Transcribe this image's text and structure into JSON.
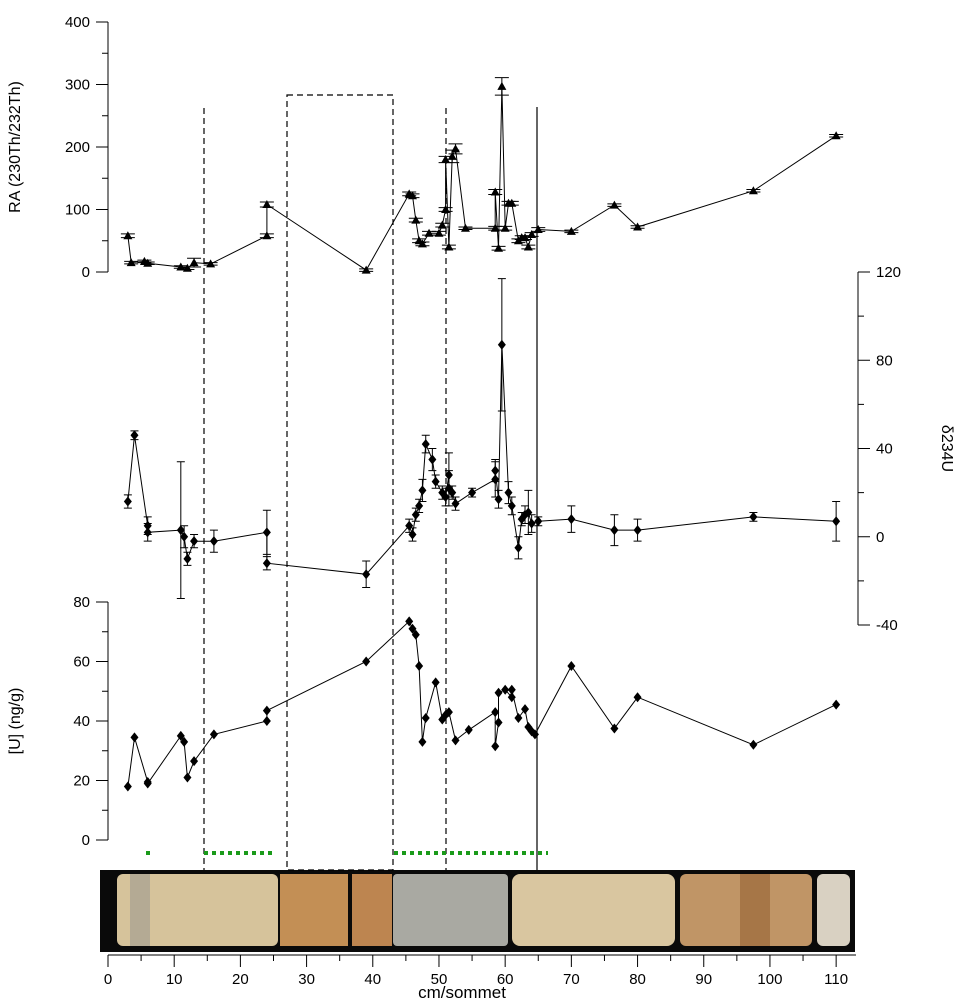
{
  "chart_data": [
    {
      "type": "line",
      "y_label": "RA (230Th/232Th)",
      "marker": "triangle",
      "color": "#000000",
      "x": [
        3,
        3.5,
        5.5,
        6,
        11,
        12,
        13,
        15.5,
        24,
        24,
        39,
        45.5,
        46,
        46.5,
        47,
        47.5,
        48.5,
        50,
        50.5,
        51,
        51,
        51.5,
        52,
        52.5,
        54,
        58.5,
        58.5,
        59,
        59.5,
        60,
        60.5,
        61,
        62,
        62.5,
        63,
        63.5,
        64,
        65,
        70,
        76.5,
        80,
        97.5,
        110
      ],
      "values": [
        58,
        15,
        17,
        14,
        8,
        6,
        15,
        13,
        58,
        108,
        3,
        125,
        122,
        83,
        50,
        45,
        62,
        62,
        75,
        100,
        180,
        40,
        185,
        197,
        70,
        70,
        128,
        38,
        297,
        70,
        110,
        110,
        50,
        55,
        55,
        40,
        60,
        68,
        65,
        107,
        72,
        130,
        218
      ],
      "errors": [
        3,
        2,
        2,
        2,
        2,
        2,
        7,
        2,
        3,
        4,
        2,
        3,
        3,
        3,
        3,
        3,
        3,
        3,
        3,
        3,
        5,
        3,
        10,
        8,
        2,
        3,
        4,
        3,
        14,
        3,
        3,
        3,
        3,
        3,
        3,
        3,
        3,
        3,
        2,
        2,
        2,
        2,
        2
      ],
      "ylim": [
        0,
        400
      ],
      "yticks": [
        0,
        100,
        200,
        300,
        400
      ],
      "yminor": [
        50,
        150,
        250,
        350
      ]
    },
    {
      "type": "line",
      "y_label": "δ234U",
      "marker": "diamond",
      "color": "#000000",
      "axis_side": "right",
      "x": [
        3,
        4,
        6,
        6,
        11,
        11.5,
        12,
        13,
        16,
        24,
        24,
        39,
        45.5,
        46,
        46.5,
        47,
        47.5,
        48,
        49,
        49.5,
        50.5,
        51,
        51.5,
        51.5,
        52,
        52.5,
        55,
        58.5,
        58.5,
        59,
        59.5,
        60.5,
        61,
        62,
        62.5,
        63,
        63.5,
        64,
        65,
        70,
        76.5,
        80,
        97.5,
        110
      ],
      "values": [
        16,
        46,
        5,
        2,
        3,
        0,
        -10,
        -2,
        -2,
        2,
        -12,
        -17,
        5,
        1,
        10,
        14,
        21,
        42,
        35,
        25,
        20,
        18,
        28,
        22,
        20,
        15,
        20,
        26,
        30,
        17,
        87,
        20,
        14,
        -5,
        8,
        10,
        11,
        6,
        7,
        8,
        3,
        3,
        9,
        7
      ],
      "errors": [
        3,
        2,
        4,
        4,
        31,
        5,
        3,
        3,
        5,
        10,
        3,
        6,
        3,
        3,
        3,
        3,
        5,
        4,
        5,
        3,
        3,
        4,
        10,
        8,
        3,
        3,
        2,
        8,
        5,
        4,
        30,
        5,
        4,
        5,
        3,
        4,
        10,
        4,
        2,
        6,
        7,
        5,
        2,
        9
      ],
      "ylim": [
        -40,
        120
      ],
      "yticks": [
        -40,
        0,
        40,
        80,
        120
      ],
      "yminor": [
        -20,
        20,
        60,
        100
      ]
    },
    {
      "type": "line",
      "y_label": "[U] (ng/g)",
      "marker": "diamond",
      "color": "#000000",
      "x": [
        3,
        4,
        6,
        6,
        11,
        11.5,
        12,
        13,
        16,
        24,
        24,
        39,
        45.5,
        46,
        46.5,
        47,
        47.5,
        48,
        49.5,
        50.5,
        51,
        51.5,
        52.5,
        54.5,
        58.5,
        58.5,
        59,
        59,
        60,
        61,
        61,
        62,
        63,
        63.5,
        64,
        64.5,
        70,
        76.5,
        80,
        97.5,
        110
      ],
      "values": [
        18,
        34.5,
        19.5,
        19,
        35,
        33,
        21,
        26.5,
        35.5,
        40,
        43.5,
        60,
        73.5,
        71,
        69,
        58.5,
        33,
        41,
        53,
        40.5,
        42,
        43,
        33.5,
        37,
        43,
        31.5,
        39.5,
        49.5,
        50.5,
        48,
        50.5,
        41,
        44,
        38,
        36.5,
        35.5,
        58.5,
        37.5,
        48,
        32,
        45.5
      ],
      "ylim": [
        0,
        80
      ],
      "yticks": [
        0,
        20,
        40,
        60,
        80
      ],
      "yminor": [
        10,
        30,
        50,
        70
      ],
      "x_label": "cm/sommet",
      "xlim": [
        0,
        113
      ],
      "xticks": [
        0,
        10,
        20,
        30,
        40,
        50,
        60,
        70,
        80,
        90,
        100,
        110
      ],
      "xminor": [
        5,
        15,
        25,
        35,
        45,
        55,
        65,
        75,
        85,
        95,
        105
      ]
    }
  ]
}
